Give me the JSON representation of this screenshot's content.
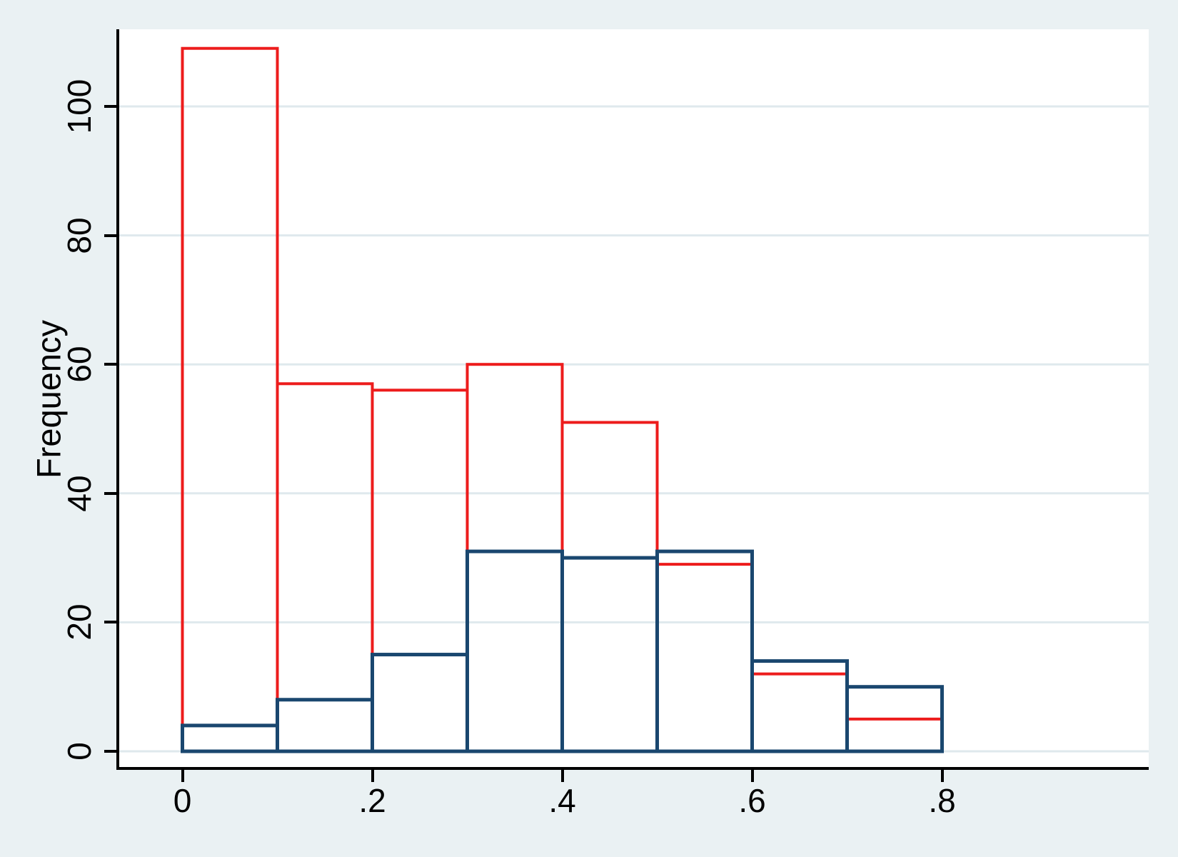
{
  "chart_data": {
    "type": "bar",
    "subtype": "overlaid-outline-histograms",
    "title": "",
    "xlabel": "",
    "ylabel": "Frequency",
    "bin_start": 0,
    "bin_width": 0.1,
    "categories": [
      "0-.1",
      ".1-.2",
      ".2-.3",
      ".3-.4",
      ".4-.5",
      ".5-.6",
      ".6-.7",
      ".7-.8"
    ],
    "series": [
      {
        "name": "red-outline-histogram",
        "color": "#ed1c1c",
        "values": [
          109,
          57,
          56,
          60,
          51,
          29,
          12,
          5
        ]
      },
      {
        "name": "navy-outline-histogram",
        "color": "#1a476f",
        "values": [
          4,
          8,
          15,
          31,
          30,
          31,
          14,
          10
        ]
      }
    ],
    "x_ticks": [
      0,
      0.2,
      0.4,
      0.6,
      0.8
    ],
    "x_tick_labels": [
      "0",
      ".2",
      ".4",
      ".6",
      ".8"
    ],
    "y_ticks": [
      0,
      20,
      40,
      60,
      80,
      100
    ],
    "y_tick_labels": [
      "0",
      "20",
      "40",
      "60",
      "80",
      "100"
    ],
    "ylim": [
      0,
      111.7
    ],
    "xlim": [
      -0.071,
      1.016
    ],
    "grid": "horizontal",
    "legend": "none",
    "bar_fill": "none",
    "colors": {
      "background": "#eaf1f3",
      "plot_background": "#ffffff",
      "gridline": "#dfe9ed",
      "axis": "#000000",
      "red_series": "#ed1c1c",
      "navy_series": "#1a476f"
    }
  }
}
